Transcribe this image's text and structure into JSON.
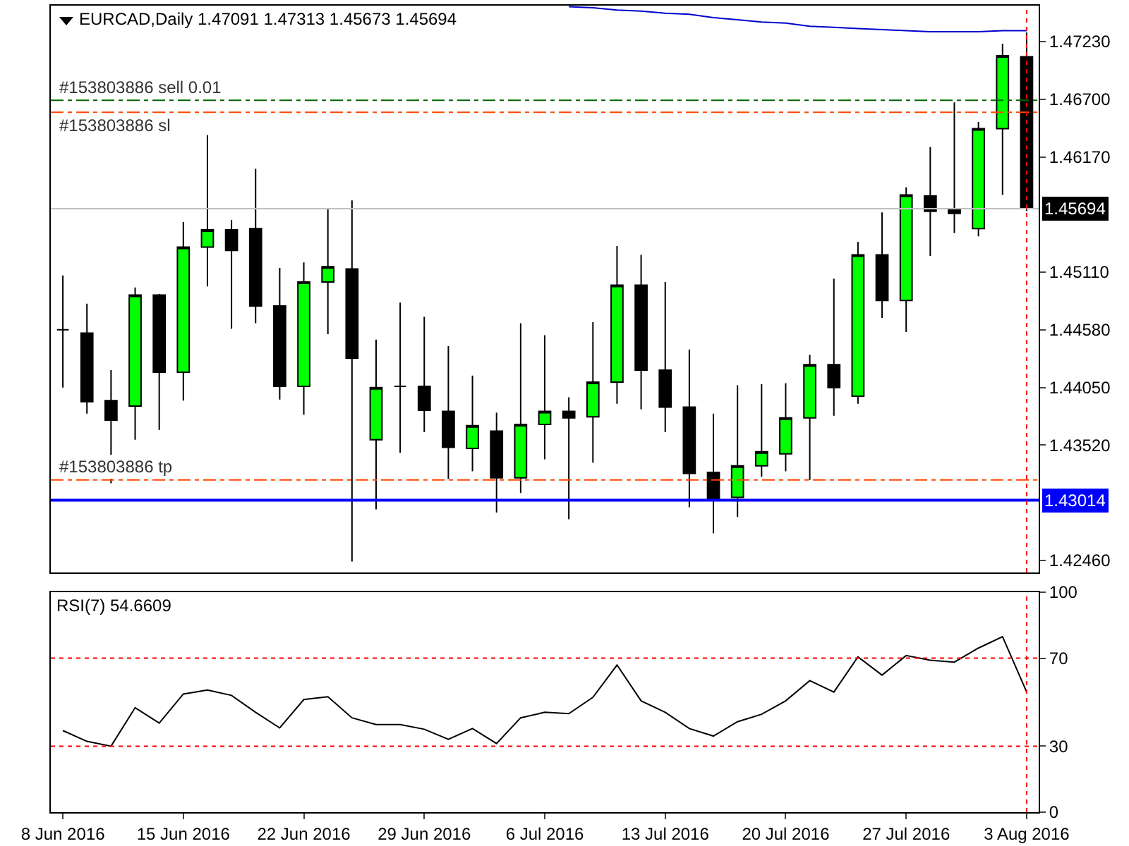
{
  "chart_data": [
    {
      "type": "candlestick",
      "title": "EURCAD,Daily 1.47091 1.47313 1.45673 1.45694",
      "categories": [
        "8 Jun 2016",
        null,
        null,
        null,
        null,
        "15 Jun 2016",
        null,
        null,
        null,
        null,
        "22 Jun 2016",
        null,
        null,
        null,
        null,
        "29 Jun 2016",
        null,
        null,
        null,
        null,
        "6 Jul 2016",
        null,
        null,
        null,
        null,
        "13 Jul 2016",
        null,
        null,
        null,
        null,
        "20 Jul 2016",
        null,
        null,
        null,
        null,
        "27 Jul 2016",
        null,
        null,
        null,
        null,
        "3 Aug 2016"
      ],
      "ohlc": [
        [
          1.4458,
          1.4508,
          1.4405,
          1.4458
        ],
        [
          1.4455,
          1.4482,
          1.4381,
          1.4392
        ],
        [
          1.4393,
          1.4421,
          1.4317,
          1.4375
        ],
        [
          1.4388,
          1.4497,
          1.4357,
          1.449
        ],
        [
          1.449,
          1.4491,
          1.4366,
          1.4419
        ],
        [
          1.4419,
          1.4557,
          1.4393,
          1.4534
        ],
        [
          1.4534,
          1.4637,
          1.4498,
          1.455
        ],
        [
          1.455,
          1.4559,
          1.4459,
          1.4531
        ],
        [
          1.4551,
          1.4606,
          1.4464,
          1.448
        ],
        [
          1.448,
          1.4515,
          1.4394,
          1.4406
        ],
        [
          1.4406,
          1.452,
          1.438,
          1.4502
        ],
        [
          1.4502,
          1.457,
          1.4454,
          1.4516
        ],
        [
          1.4514,
          1.4577,
          1.4245,
          1.4432
        ],
        [
          1.4357,
          1.4449,
          1.4293,
          1.4405
        ],
        [
          1.4406,
          1.4483,
          1.4345,
          1.4406
        ],
        [
          1.4406,
          1.447,
          1.4364,
          1.4384
        ],
        [
          1.4383,
          1.4443,
          1.4321,
          1.435
        ],
        [
          1.4349,
          1.4416,
          1.4328,
          1.437
        ],
        [
          1.4365,
          1.4382,
          1.429,
          1.4322
        ],
        [
          1.4322,
          1.4464,
          1.4308,
          1.4371
        ],
        [
          1.4371,
          1.4453,
          1.4339,
          1.4383
        ],
        [
          1.4383,
          1.4396,
          1.4284,
          1.4377
        ],
        [
          1.4378,
          1.4465,
          1.4336,
          1.441
        ],
        [
          1.441,
          1.4535,
          1.439,
          1.4499
        ],
        [
          1.4499,
          1.4527,
          1.4385,
          1.4421
        ],
        [
          1.4421,
          1.4502,
          1.4364,
          1.4387
        ],
        [
          1.4387,
          1.444,
          1.4295,
          1.4326
        ],
        [
          1.4327,
          1.4381,
          1.4271,
          1.4302
        ],
        [
          1.4304,
          1.4407,
          1.4286,
          1.4333
        ],
        [
          1.4333,
          1.4408,
          1.4323,
          1.4346
        ],
        [
          1.4344,
          1.4409,
          1.4328,
          1.4377
        ],
        [
          1.4377,
          1.4435,
          1.432,
          1.4426
        ],
        [
          1.4426,
          1.4505,
          1.4379,
          1.4405
        ],
        [
          1.4397,
          1.4539,
          1.439,
          1.4527
        ],
        [
          1.4527,
          1.4566,
          1.4469,
          1.4485
        ],
        [
          1.4485,
          1.4589,
          1.4456,
          1.4582
        ],
        [
          1.4581,
          1.4626,
          1.4526,
          1.4567
        ],
        [
          1.4568,
          1.4667,
          1.4547,
          1.4565
        ],
        [
          1.4551,
          1.4649,
          1.4544,
          1.4643
        ],
        [
          1.4643,
          1.4721,
          1.4582,
          1.471
        ],
        [
          1.47091,
          1.47313,
          1.45673,
          1.45694
        ]
      ],
      "series": [
        {
          "type": "line",
          "color": "#0000cd",
          "values": [
            null,
            null,
            null,
            null,
            null,
            null,
            null,
            null,
            null,
            null,
            null,
            null,
            null,
            null,
            null,
            null,
            null,
            null,
            null,
            null,
            null,
            1.4755,
            1.4754,
            1.4752,
            1.4751,
            1.4749,
            1.4748,
            1.4745,
            1.4743,
            1.4741,
            1.474,
            1.4737,
            1.4736,
            1.4735,
            1.4734,
            1.4733,
            1.4732,
            1.4732,
            1.4732,
            1.4733,
            1.4733
          ]
        }
      ],
      "ylim": [
        1.4235,
        1.4756
      ],
      "yticks": [
        {
          "value": 1.4723,
          "label": "1.47230"
        },
        {
          "value": 1.467,
          "label": "1.46700"
        },
        {
          "value": 1.4617,
          "label": "1.46170"
        },
        {
          "value": 1.4511,
          "label": "1.45110"
        },
        {
          "value": 1.4458,
          "label": "1.44580"
        },
        {
          "value": 1.4405,
          "label": "1.44050"
        },
        {
          "value": 1.4352,
          "label": "1.43520"
        },
        {
          "value": 1.4246,
          "label": "1.42460"
        }
      ],
      "ref_lines": [
        {
          "axis": "y",
          "value": 1.45694,
          "label": "1.45694",
          "color": "#c0c0c0",
          "line_style": "solid"
        },
        {
          "axis": "y",
          "value": 1.43014,
          "label": "1.43014",
          "color": "#0000ff",
          "line_style": "solid"
        },
        {
          "axis": "y",
          "value": 1.4669,
          "label": "#153803886 sell 0.01",
          "color": "#006400",
          "line_style": "dashed"
        },
        {
          "axis": "y",
          "value": 1.4658,
          "label": "#153803886 sl",
          "color": "#ff4500",
          "line_style": "dashed"
        },
        {
          "axis": "y",
          "value": 1.432,
          "label": "#153803886 tp",
          "color": "#ff4500",
          "line_style": "dashed"
        },
        {
          "axis": "x",
          "value": "3 Aug 2016",
          "color": "#ff0000",
          "line_style": "dotted"
        }
      ],
      "tick_labels": "y"
    },
    {
      "type": "line",
      "title": "RSI(7) 54.6609",
      "color": "#000000",
      "categories": [
        "8 Jun 2016",
        null,
        null,
        null,
        null,
        "15 Jun 2016",
        null,
        null,
        null,
        null,
        "22 Jun 2016",
        null,
        null,
        null,
        null,
        "29 Jun 2016",
        null,
        null,
        null,
        null,
        "6 Jul 2016",
        null,
        null,
        null,
        null,
        "13 Jul 2016",
        null,
        null,
        null,
        null,
        "20 Jul 2016",
        null,
        null,
        null,
        null,
        "27 Jul 2016",
        null,
        null,
        null,
        null,
        "3 Aug 2016"
      ],
      "values": [
        37.1,
        32.2,
        30.0,
        47.5,
        40.5,
        53.7,
        55.5,
        53.1,
        45.4,
        38.3,
        51.2,
        52.5,
        42.9,
        39.8,
        39.8,
        37.7,
        33.1,
        38.0,
        31.2,
        42.9,
        45.4,
        44.8,
        52.2,
        66.9,
        50.6,
        45.4,
        38.0,
        34.6,
        41.1,
        44.5,
        50.6,
        59.8,
        54.6,
        70.6,
        62.3,
        71.2,
        69.1,
        68.2,
        74.6,
        79.8,
        54.7
      ],
      "ylim": [
        0,
        100
      ],
      "yticks": [
        0,
        30,
        70,
        100
      ],
      "ref_lines": [
        {
          "axis": "y",
          "value": 70,
          "color": "#ff0000",
          "line_style": "dotted"
        },
        {
          "axis": "y",
          "value": 30,
          "color": "#ff0000",
          "line_style": "dotted"
        },
        {
          "axis": "x",
          "value": "3 Aug 2016",
          "color": "#ff0000",
          "line_style": "dotted"
        }
      ]
    }
  ]
}
